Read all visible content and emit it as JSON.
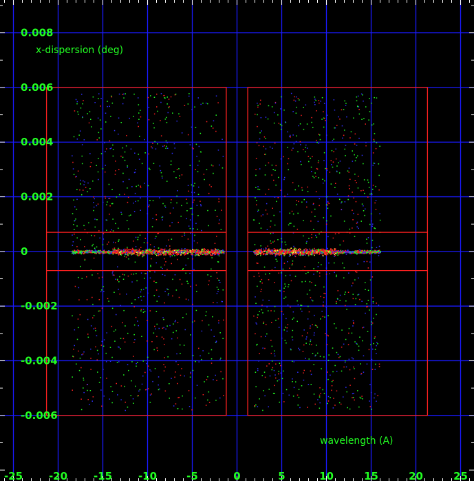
{
  "chart_data": {
    "type": "scatter",
    "xlabel": "wavelength (A)",
    "ylabel": "x-dispersion (deg)",
    "xlim": [
      -26.5,
      26.5
    ],
    "ylim": [
      -0.0084,
      0.0092
    ],
    "x_ticks": [
      -25,
      -20,
      -15,
      -10,
      -5,
      0,
      5,
      10,
      15,
      20,
      25
    ],
    "x_tick_labels": [
      "-25",
      "-20",
      "-15",
      "-10",
      "-5",
      "0",
      "5",
      "10",
      "15",
      "20",
      "25"
    ],
    "y_ticks": [
      -0.006,
      -0.004,
      -0.002,
      0,
      0.002,
      0.004,
      0.006,
      0.008
    ],
    "y_tick_labels": [
      "-0.006",
      "-0.004",
      "-0.002",
      "0",
      "0.002",
      "0.004",
      "0.006",
      "0.008"
    ],
    "grid": true,
    "background_color": "#000000",
    "grid_color": "#1a1aff",
    "box_color": "#ff2020",
    "text_color": "#22ff22",
    "point_colors": [
      "#ff2020",
      "#22ff22",
      "#3030ff",
      "#ffff40"
    ],
    "regions": [
      {
        "x": [
          -21.3,
          -1.2
        ],
        "y": [
          -0.006,
          0.006
        ]
      },
      {
        "x": [
          1.2,
          21.3
        ],
        "y": [
          -0.006,
          0.006
        ]
      }
    ],
    "extraction_band": {
      "y": [
        -0.0007,
        0.0007
      ]
    },
    "point_clouds": [
      {
        "x": [
          -18.5,
          -1.5
        ],
        "y": [
          -0.0058,
          0.0058
        ],
        "core_x": [
          -14,
          -2
        ],
        "core_y": [
          -0.00022,
          0.00022
        ]
      },
      {
        "x": [
          1.8,
          16.0
        ],
        "y": [
          -0.0058,
          0.0058
        ],
        "core_x": [
          2,
          11
        ],
        "core_y": [
          -0.00022,
          0.00022
        ]
      }
    ]
  }
}
